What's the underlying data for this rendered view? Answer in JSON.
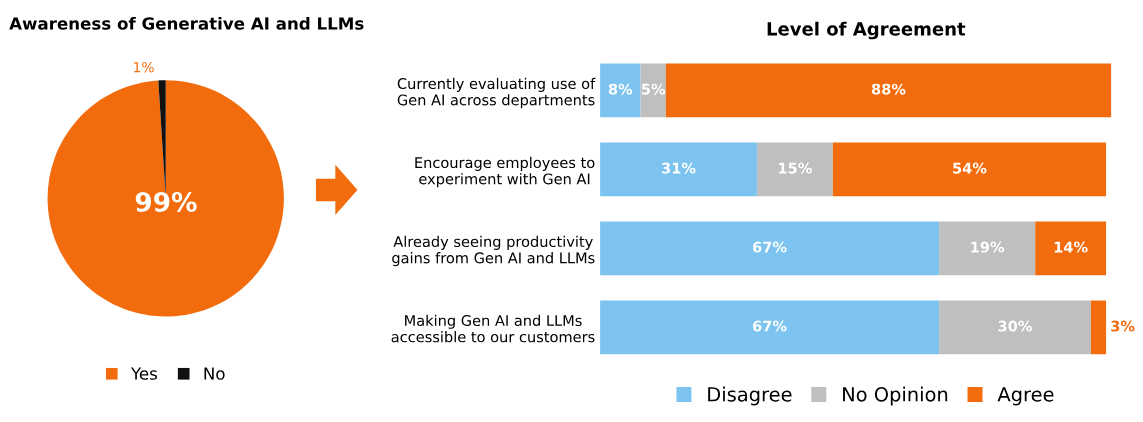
{
  "chart_data": [
    {
      "type": "pie",
      "title": "Awareness of Generative AI and LLMs",
      "categories": [
        "Yes",
        "No"
      ],
      "values": [
        99,
        1
      ],
      "value_labels": [
        "99%",
        "1%"
      ],
      "colors": [
        "#f26c0d",
        "#111111"
      ],
      "legend": "bottom"
    },
    {
      "type": "bar",
      "orientation": "horizontal",
      "stacked": true,
      "title": "Level of Agreement",
      "categories": [
        "Currently evaluating use of\nGen AI across departments",
        "Encourage employees to\nexperiment with Gen AI",
        "Already seeing productivity\ngains from Gen AI and LLMs",
        "Making Gen AI and LLMs\naccessible to our customers"
      ],
      "series": [
        {
          "name": "Disagree",
          "color": "#7cc3ef",
          "values": [
            8,
            31,
            67,
            67
          ],
          "value_labels": [
            "8%",
            "31%",
            "67%",
            "67%"
          ]
        },
        {
          "name": "No Opinion",
          "color": "#bfbfbf",
          "values": [
            5,
            15,
            19,
            30
          ],
          "value_labels": [
            "5%",
            "15%",
            "19%",
            "30%"
          ]
        },
        {
          "name": "Agree",
          "color": "#f26c0d",
          "values": [
            88,
            54,
            14,
            3
          ],
          "value_labels": [
            "88%",
            "54%",
            "14%",
            "3%"
          ]
        }
      ],
      "legend": "bottom",
      "tick_labels": "y"
    }
  ]
}
